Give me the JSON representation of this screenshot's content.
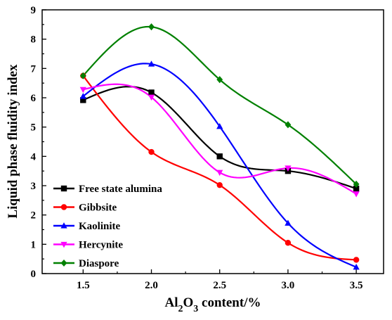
{
  "chart_data": {
    "type": "scatter",
    "xlabel": {
      "main": "Al",
      "sub1": "2",
      "mid": "O",
      "sub2": "3",
      "rest": " content/%"
    },
    "ylabel": "Liquid phase fluidity index",
    "xlim": [
      1.2,
      3.7
    ],
    "ylim": [
      0,
      9
    ],
    "xticks": [
      1.5,
      2.0,
      2.5,
      3.0,
      3.5
    ],
    "xtick_labels": [
      "1.5",
      "2.0",
      "2.5",
      "3.0",
      "3.5"
    ],
    "yticks": [
      0,
      1,
      2,
      3,
      4,
      5,
      6,
      7,
      8,
      9
    ],
    "ytick_labels": [
      "0",
      "1",
      "2",
      "3",
      "4",
      "5",
      "6",
      "7",
      "8",
      "9"
    ],
    "legend_position": "bottom-left",
    "series": [
      {
        "name": "Free state alumina",
        "color": "#000000",
        "marker": "square",
        "x": [
          1.5,
          2.0,
          2.5,
          3.0,
          3.5
        ],
        "y": [
          5.92,
          6.18,
          4.0,
          3.5,
          2.9
        ]
      },
      {
        "name": "Gibbsite",
        "color": "#ff0000",
        "marker": "circle",
        "x": [
          1.5,
          2.0,
          2.5,
          3.0,
          3.5
        ],
        "y": [
          6.75,
          4.15,
          3.02,
          1.05,
          0.47
        ]
      },
      {
        "name": "Kaolinite",
        "color": "#0000ff",
        "marker": "triangle-up",
        "x": [
          1.5,
          2.0,
          2.5,
          3.0,
          3.5
        ],
        "y": [
          6.05,
          7.15,
          5.02,
          1.72,
          0.22
        ]
      },
      {
        "name": "Hercynite",
        "color": "#ff00ff",
        "marker": "triangle-down",
        "x": [
          1.5,
          2.0,
          2.5,
          3.0,
          3.5
        ],
        "y": [
          6.28,
          6.02,
          3.45,
          3.6,
          2.72
        ]
      },
      {
        "name": "Diaspore",
        "color": "#008000",
        "marker": "diamond",
        "x": [
          1.5,
          2.0,
          2.5,
          3.0,
          3.5
        ],
        "y": [
          6.75,
          8.42,
          6.62,
          5.08,
          3.05
        ]
      }
    ]
  }
}
